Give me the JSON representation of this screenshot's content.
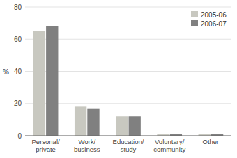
{
  "chart_data": {
    "type": "bar",
    "categories": [
      "Personal/\nprivate",
      "Work/\nbusiness",
      "Education/\nstudy",
      "Voluntary/\ncommunity",
      "Other"
    ],
    "series": [
      {
        "name": "2005-06",
        "color": "#c8c8c0",
        "values": [
          65,
          18,
          12,
          1,
          1
        ]
      },
      {
        "name": "2006-07",
        "color": "#808080",
        "values": [
          68,
          17,
          12,
          1,
          1
        ]
      }
    ],
    "ylabel": "%",
    "ylim": [
      0,
      80
    ],
    "yticks": [
      0,
      20,
      40,
      60,
      80
    ],
    "grid": true,
    "legend": "upper right"
  }
}
